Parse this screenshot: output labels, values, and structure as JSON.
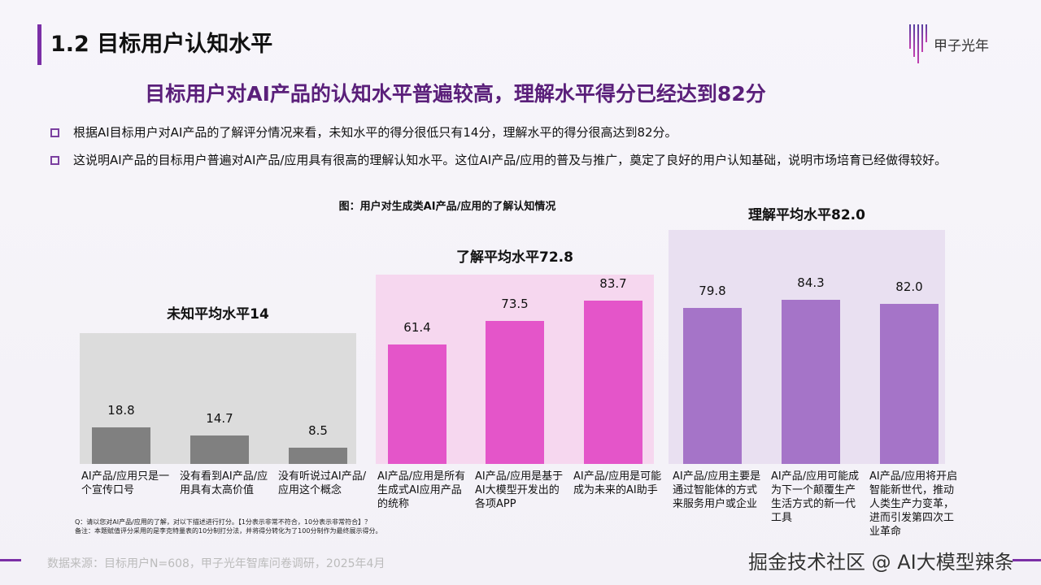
{
  "header": {
    "title": "1.2 目标用户认知水平",
    "logo_text": "甲子光年"
  },
  "subtitle": "目标用户对AI产品的认知水平普遍较高，理解水平得分已经达到82分",
  "bullets": [
    "根据AI目标用户对AI产品的了解评分情况来看，未知水平的得分很低只有14分，理解水平的得分很高达到82分。",
    "这说明AI产品的目标用户普遍对AI产品/应用具有很高的理解认知水平。这位AI产品/应用的普及与推广，奠定了良好的用户认知基础，说明市场培育已经做得较好。"
  ],
  "chart_data": {
    "type": "bar",
    "title": "图：用户对生成类AI产品/应用的了解认知情况",
    "ylim": [
      0,
      100
    ],
    "groups": [
      {
        "name": "未知平均水平14",
        "color": "#808080",
        "panel": "#dcdcdc",
        "categories": [
          "AI产品/应用只是一个宣传口号",
          "没有看到AI产品/应用具有太高价值",
          "没有听说过AI产品/应用这个概念"
        ],
        "values": [
          18.8,
          14.7,
          8.5
        ],
        "labels": [
          "18.8",
          "14.7",
          "8.5"
        ]
      },
      {
        "name": "了解平均水平72.8",
        "color": "#e455c9",
        "panel": "#f6d7ef",
        "categories": [
          "AI产品/应用是所有生成式AI应用产品的统称",
          "AI产品/应用是基于AI大模型开发出的各项APP",
          "AI产品/应用是可能成为未来的AI助手"
        ],
        "values": [
          61.4,
          73.5,
          83.7
        ],
        "labels": [
          "61.4",
          "73.5",
          "83.7"
        ]
      },
      {
        "name": "理解平均水平82.0",
        "color": "#a574c8",
        "panel": "#e9e0f1",
        "categories": [
          "AI产品/应用主要是通过智能体的方式来服务用户或企业",
          "AI产品/应用可能成为下一个颠覆生产生活方式的新一代工具",
          "AI产品/应用将开启智能新世代，推动人类生产力变革，进而引发第四次工业革命"
        ],
        "values": [
          79.8,
          84.3,
          82.0
        ],
        "labels": [
          "79.8",
          "84.3",
          "82.0"
        ]
      }
    ]
  },
  "notes": [
    "Q：请以您对AI产品/应用的了解，对以下描述进行打分。【1分表示非常不符合，10分表示非常符合】？",
    "备注：本题赋值评分采用的是李克特量表的10分制打分法，并将得分转化为了100分制作为最终展示得分。"
  ],
  "source": "数据来源：目标用户N=608，甲子光年智库问卷调研，2025年4月",
  "watermark": "掘金技术社区 @ AI大模型辣条"
}
